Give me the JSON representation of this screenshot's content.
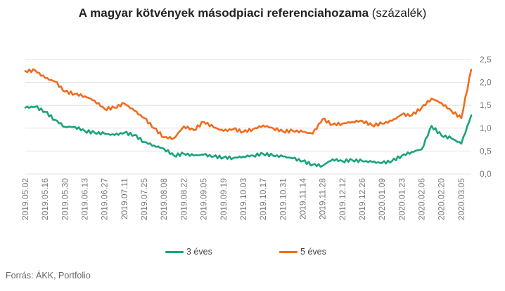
{
  "title": {
    "main": "A magyar kötvények másodpiaci referenciahozama",
    "unit": "(százalék)"
  },
  "source": "Forrás: ÁKK, Portfolio",
  "colors": {
    "3 éves": "#1aa37a",
    "5 éves": "#f26b1d",
    "grid": "#e2e2e2",
    "axis_text": "#777777"
  },
  "legend": [
    {
      "label": "3 éves",
      "color": "#1aa37a"
    },
    {
      "label": "5 éves",
      "color": "#f26b1d"
    }
  ],
  "chart_data": {
    "type": "line",
    "title": "A magyar kötvények másodpiaci referenciahozama (százalék)",
    "x_tick_labels": [
      "2019.05.02",
      "2019.05.16",
      "2019.05.30",
      "2019.06.13",
      "2019.06.27",
      "2019.07.11",
      "2019.07.25",
      "2019.08.08",
      "2019.08.22",
      "2019.09.05",
      "2019.09.19",
      "2019.10.03",
      "2019.10.17",
      "2019.10.31",
      "2019.11.14",
      "2019.11.28",
      "2019.12.12",
      "2019.12.26",
      "2020.01.09",
      "2020.01.23",
      "2020.02.06",
      "2020.02.20",
      "2020.03.05"
    ],
    "y_tick_labels": [
      "0,0",
      "0,5",
      "1,0",
      "1,5",
      "2,0",
      "2,5"
    ],
    "ylim": [
      0,
      2.5
    ],
    "y_axis_side": "right",
    "grid": "horizontal",
    "legend_position": "bottom",
    "series": [
      {
        "name": "3 éves",
        "x": [
          "2019.05.02",
          "2019.05.09",
          "2019.05.16",
          "2019.05.23",
          "2019.05.30",
          "2019.06.06",
          "2019.06.13",
          "2019.06.20",
          "2019.06.27",
          "2019.07.04",
          "2019.07.11",
          "2019.07.18",
          "2019.07.25",
          "2019.08.01",
          "2019.08.08",
          "2019.08.15",
          "2019.08.22",
          "2019.08.29",
          "2019.09.05",
          "2019.09.12",
          "2019.09.19",
          "2019.09.26",
          "2019.10.03",
          "2019.10.10",
          "2019.10.17",
          "2019.10.24",
          "2019.10.31",
          "2019.11.07",
          "2019.11.14",
          "2019.11.21",
          "2019.11.28",
          "2019.12.05",
          "2019.12.12",
          "2019.12.19",
          "2019.12.26",
          "2020.01.02",
          "2020.01.09",
          "2020.01.16",
          "2020.01.23",
          "2020.01.30",
          "2020.02.06",
          "2020.02.13",
          "2020.02.20",
          "2020.02.27",
          "2020.03.05",
          "2020.03.12"
        ],
        "values": [
          1.45,
          1.47,
          1.36,
          1.18,
          1.03,
          1.03,
          0.94,
          0.9,
          0.88,
          0.85,
          0.9,
          0.85,
          0.7,
          0.62,
          0.55,
          0.4,
          0.44,
          0.4,
          0.42,
          0.38,
          0.36,
          0.35,
          0.38,
          0.4,
          0.44,
          0.4,
          0.38,
          0.34,
          0.28,
          0.2,
          0.18,
          0.32,
          0.28,
          0.3,
          0.28,
          0.26,
          0.24,
          0.28,
          0.4,
          0.48,
          0.54,
          1.05,
          0.84,
          0.78,
          0.66,
          1.28
        ]
      },
      {
        "name": "5 éves",
        "x": [
          "2019.05.02",
          "2019.05.09",
          "2019.05.16",
          "2019.05.23",
          "2019.05.30",
          "2019.06.06",
          "2019.06.13",
          "2019.06.20",
          "2019.06.27",
          "2019.07.04",
          "2019.07.11",
          "2019.07.18",
          "2019.07.25",
          "2019.08.01",
          "2019.08.08",
          "2019.08.15",
          "2019.08.22",
          "2019.08.29",
          "2019.09.05",
          "2019.09.12",
          "2019.09.19",
          "2019.09.26",
          "2019.10.03",
          "2019.10.10",
          "2019.10.17",
          "2019.10.24",
          "2019.10.31",
          "2019.11.07",
          "2019.11.14",
          "2019.11.21",
          "2019.11.28",
          "2019.12.05",
          "2019.12.12",
          "2019.12.19",
          "2019.12.26",
          "2020.01.02",
          "2020.01.09",
          "2020.01.16",
          "2020.01.23",
          "2020.01.30",
          "2020.02.06",
          "2020.02.13",
          "2020.02.20",
          "2020.02.27",
          "2020.03.05",
          "2020.03.12"
        ],
        "values": [
          2.25,
          2.26,
          2.1,
          2.02,
          1.8,
          1.75,
          1.7,
          1.6,
          1.42,
          1.45,
          1.54,
          1.38,
          1.22,
          1.0,
          0.8,
          0.78,
          1.04,
          0.96,
          1.14,
          1.02,
          0.94,
          0.98,
          0.92,
          0.98,
          1.06,
          1.0,
          0.93,
          0.94,
          0.92,
          0.88,
          1.2,
          1.08,
          1.1,
          1.14,
          1.16,
          1.06,
          1.1,
          1.16,
          1.3,
          1.28,
          1.45,
          1.65,
          1.55,
          1.38,
          1.22,
          2.28
        ]
      }
    ]
  }
}
